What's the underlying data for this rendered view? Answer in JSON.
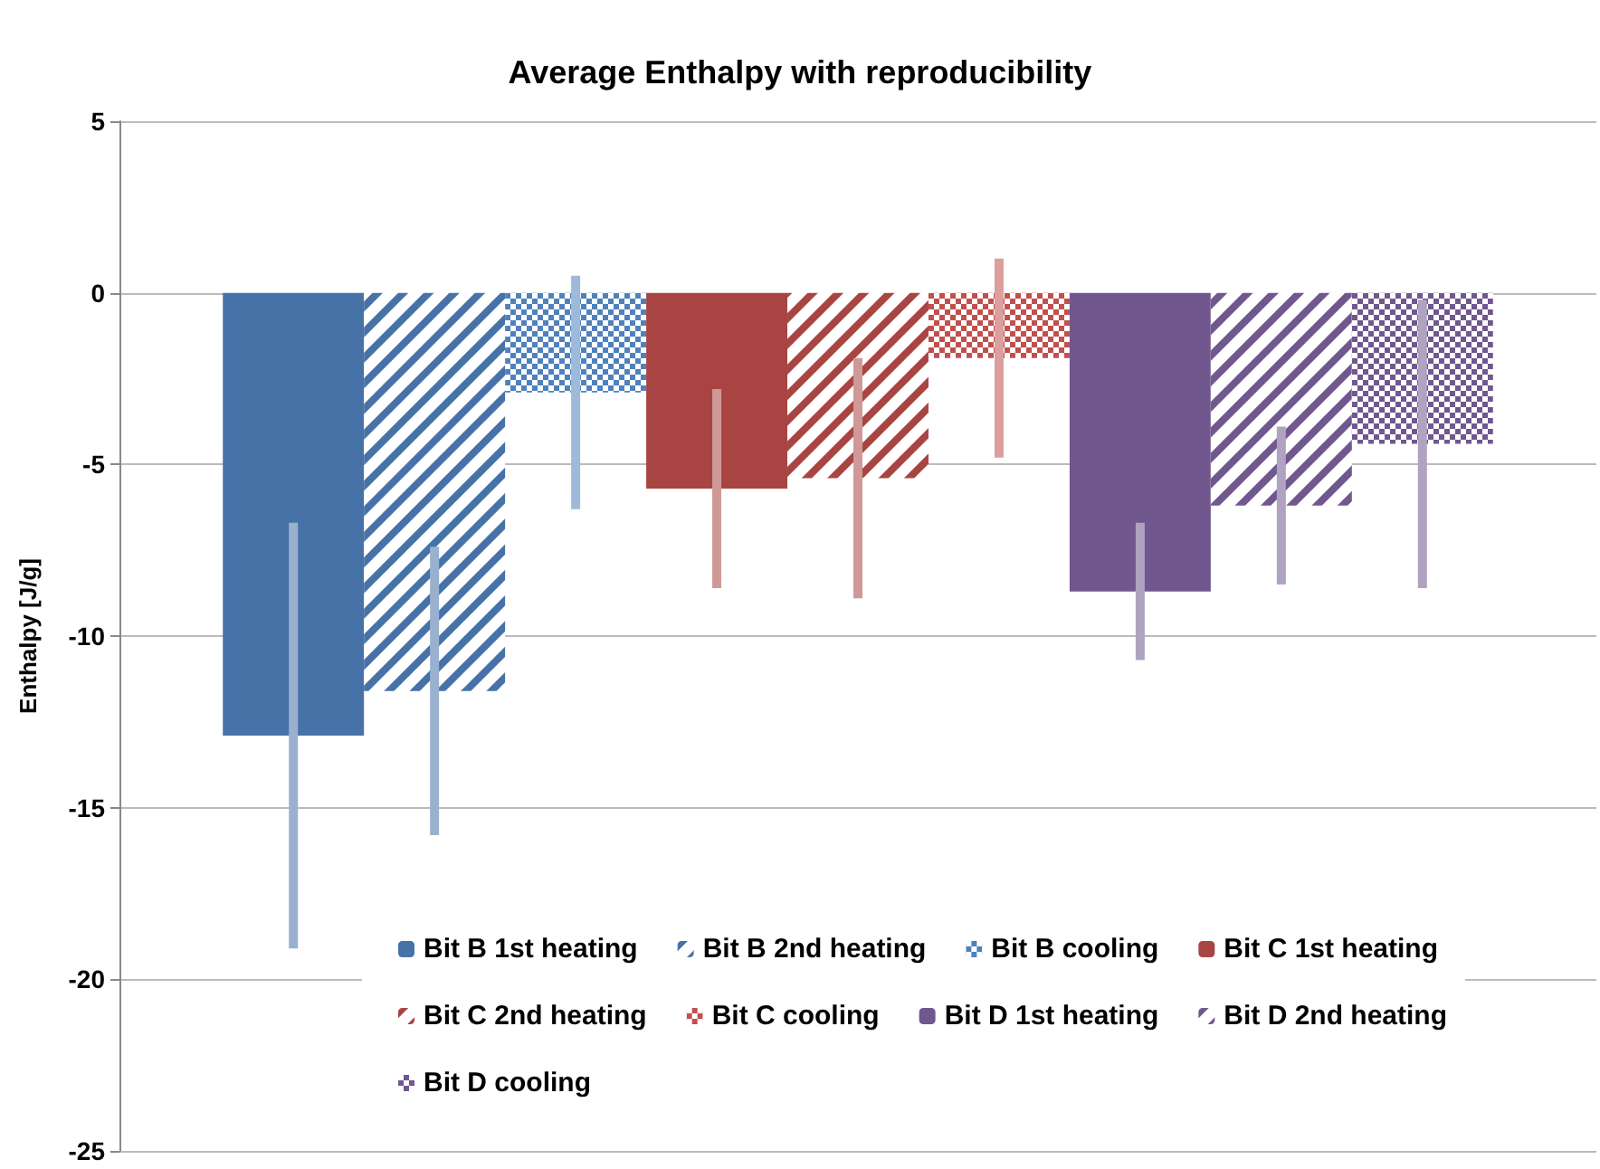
{
  "chart_data": {
    "type": "bar",
    "title": "Average Enthalpy with reproducibility",
    "ylabel": "Enthalpy [J/g]",
    "categories": [
      null
    ],
    "series": [
      {
        "name": "Bit B 1st heating",
        "color": "#4672a8",
        "values": [
          -12.9
        ],
        "errors": [
          6.2
        ]
      },
      {
        "name": "Bit B 2nd heating",
        "color": "#4672a8",
        "values": [
          -11.6
        ],
        "errors": [
          4.2
        ]
      },
      {
        "name": "Bit B cooling",
        "color": "#4f81bd",
        "values": [
          -2.9
        ],
        "errors": [
          3.4
        ]
      },
      {
        "name": "Bit C 1st heating",
        "color": "#a84543",
        "values": [
          -5.7
        ],
        "errors": [
          2.9
        ]
      },
      {
        "name": "Bit C 2nd heating",
        "color": "#a84543",
        "values": [
          -5.4
        ],
        "errors": [
          3.5
        ]
      },
      {
        "name": "Bit C cooling",
        "color": "#c0504d",
        "values": [
          -1.9
        ],
        "errors": [
          2.9
        ]
      },
      {
        "name": "Bit D 1st heating",
        "color": "#70578e",
        "values": [
          -8.7
        ],
        "errors": [
          2.0
        ]
      },
      {
        "name": "Bit D 2nd heating",
        "color": "#70578e",
        "values": [
          -6.2
        ],
        "errors": [
          2.3
        ]
      },
      {
        "name": "Bit D cooling",
        "color": "#70578e",
        "values": [
          -4.4
        ],
        "errors": [
          4.2
        ]
      }
    ],
    "ylim": [
      -25,
      5
    ],
    "yticks": [
      -25,
      -20,
      -15,
      -10,
      -5,
      0,
      5
    ],
    "grid": "y",
    "legend": "bottom"
  }
}
